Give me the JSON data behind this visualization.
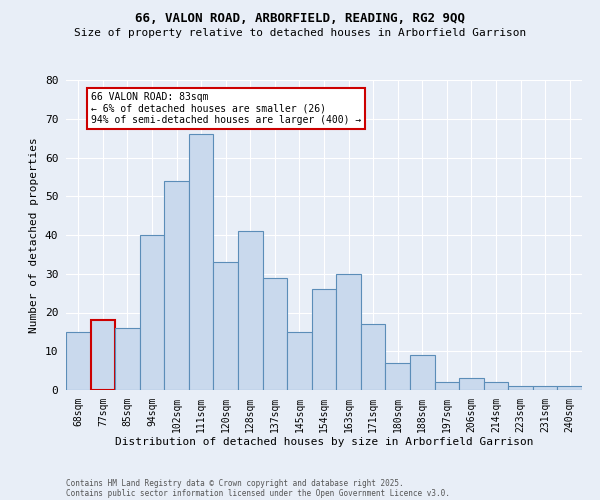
{
  "title1": "66, VALON ROAD, ARBORFIELD, READING, RG2 9QQ",
  "title2": "Size of property relative to detached houses in Arborfield Garrison",
  "xlabel": "Distribution of detached houses by size in Arborfield Garrison",
  "ylabel": "Number of detached properties",
  "bin_labels": [
    "68sqm",
    "77sqm",
    "85sqm",
    "94sqm",
    "102sqm",
    "111sqm",
    "120sqm",
    "128sqm",
    "137sqm",
    "145sqm",
    "154sqm",
    "163sqm",
    "171sqm",
    "180sqm",
    "188sqm",
    "197sqm",
    "206sqm",
    "214sqm",
    "223sqm",
    "231sqm",
    "240sqm"
  ],
  "values": [
    15,
    18,
    16,
    40,
    54,
    66,
    33,
    41,
    29,
    15,
    26,
    30,
    17,
    7,
    9,
    2,
    3,
    2,
    1,
    1,
    1
  ],
  "bar_color": "#c9d9ed",
  "bar_edge_color": "#5b8db8",
  "highlight_edge_color": "#cc0000",
  "annotation_box_text": "66 VALON ROAD: 83sqm\n← 6% of detached houses are smaller (26)\n94% of semi-detached houses are larger (400) →",
  "annotation_box_color": "#ffffff",
  "annotation_box_edge_color": "#cc0000",
  "footer1": "Contains HM Land Registry data © Crown copyright and database right 2025.",
  "footer2": "Contains public sector information licensed under the Open Government Licence v3.0.",
  "ylim": [
    0,
    80
  ],
  "yticks": [
    0,
    10,
    20,
    30,
    40,
    50,
    60,
    70,
    80
  ],
  "bg_color": "#e8eef7",
  "grid_color": "#ffffff",
  "title1_fontsize": 9,
  "title2_fontsize": 8
}
